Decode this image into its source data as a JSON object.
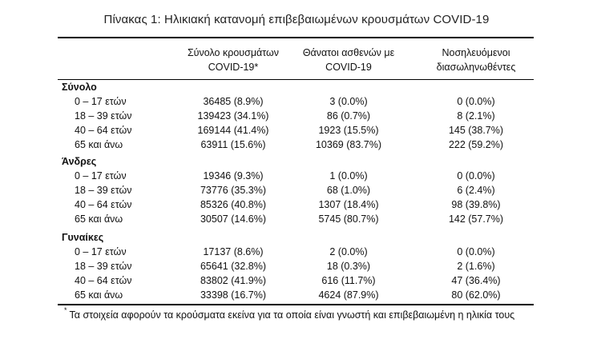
{
  "title": "Πίνακας 1: Ηλικιακή κατανομή επιβεβαιωμένων κρουσμάτων COVID-19",
  "columns": [
    {
      "line1": "Σύνολο κρουσμάτων",
      "line2": "COVID-19*"
    },
    {
      "line1": "Θάνατοι ασθενών με",
      "line2": "COVID-19"
    },
    {
      "line1": "Νοσηλευόμενοι",
      "line2": "διασωληνωθέντες"
    }
  ],
  "groups": [
    {
      "name": "Σύνολο",
      "rows": [
        {
          "label": "0 – 17 ετών",
          "cases": "36485 (8.9%)",
          "deaths": "3 (0.0%)",
          "intubated": "0 (0.0%)"
        },
        {
          "label": "18 – 39 ετών",
          "cases": "139423 (34.1%)",
          "deaths": "86 (0.7%)",
          "intubated": "8 (2.1%)"
        },
        {
          "label": "40 – 64 ετών",
          "cases": "169144 (41.4%)",
          "deaths": "1923 (15.5%)",
          "intubated": "145 (38.7%)"
        },
        {
          "label": "65 και άνω",
          "cases": "63911 (15.6%)",
          "deaths": "10369 (83.7%)",
          "intubated": "222 (59.2%)"
        }
      ]
    },
    {
      "name": "Άνδρες",
      "rows": [
        {
          "label": "0 – 17 ετών",
          "cases": "19346 (9.3%)",
          "deaths": "1 (0.0%)",
          "intubated": "0 (0.0%)"
        },
        {
          "label": "18 – 39 ετών",
          "cases": "73776 (35.3%)",
          "deaths": "68 (1.0%)",
          "intubated": "6 (2.4%)"
        },
        {
          "label": "40 – 64 ετών",
          "cases": "85326 (40.8%)",
          "deaths": "1307 (18.4%)",
          "intubated": "98 (39.8%)"
        },
        {
          "label": "65 και άνω",
          "cases": "30507 (14.6%)",
          "deaths": "5745 (80.7%)",
          "intubated": "142 (57.7%)"
        }
      ]
    },
    {
      "name": "Γυναίκες",
      "rows": [
        {
          "label": "0 – 17 ετών",
          "cases": "17137 (8.6%)",
          "deaths": "2 (0.0%)",
          "intubated": "0 (0.0%)"
        },
        {
          "label": "18 – 39 ετών",
          "cases": "65641 (32.8%)",
          "deaths": "18 (0.3%)",
          "intubated": "2 (1.6%)"
        },
        {
          "label": "40 – 64 ετών",
          "cases": "83802 (41.9%)",
          "deaths": "616 (11.7%)",
          "intubated": "47 (36.4%)"
        },
        {
          "label": "65 και άνω",
          "cases": "33398 (16.7%)",
          "deaths": "4624 (87.9%)",
          "intubated": "80 (62.0%)"
        }
      ]
    }
  ],
  "footnote": {
    "marker": "*",
    "text": "Τα στοιχεία αφορούν τα κρούσματα εκείνα για τα οποία είναι γνωστή και επιβεβαιωμένη η ηλικία τους"
  }
}
